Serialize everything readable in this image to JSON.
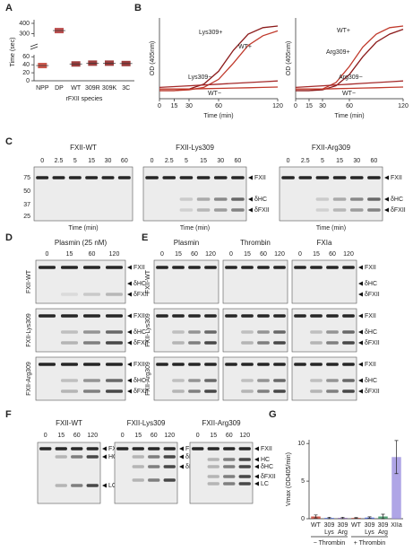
{
  "panel_labels": [
    "A",
    "B",
    "C",
    "D",
    "E",
    "F",
    "G"
  ],
  "chart_data": [
    {
      "type": "scatter",
      "ylabel": "Time (sec)",
      "xlabel": "rFXII species",
      "categories": [
        "NPP",
        "DP",
        "WT",
        "309R",
        "309K",
        "3C"
      ],
      "values": [
        38,
        330,
        42,
        44,
        44,
        43
      ],
      "colors": [
        "#c0392b",
        "#b03030",
        "#8b1a1a",
        "#8b1a1a",
        "#8b1a1a",
        "#8b1a1a"
      ],
      "ylim": [
        0,
        400
      ],
      "axis_break": [
        65,
        270
      ],
      "yticks": [
        0,
        20,
        40,
        60,
        300,
        400
      ]
    },
    {
      "type": "line",
      "ylabel": "OD (405nm)",
      "xlabel": "Time (min)",
      "x": [
        0,
        15,
        30,
        45,
        60,
        75,
        90,
        105,
        120
      ],
      "xlim": [
        0,
        120
      ],
      "xticks": [
        0,
        15,
        30,
        60,
        120
      ],
      "ylim": [
        0,
        0.5
      ],
      "series": [
        {
          "name": "Lys309+",
          "color": "#8b1a1a",
          "values": [
            0.05,
            0.05,
            0.06,
            0.09,
            0.17,
            0.3,
            0.4,
            0.44,
            0.45
          ]
        },
        {
          "name": "WT+",
          "color": "#c0392b",
          "values": [
            0.05,
            0.05,
            0.055,
            0.07,
            0.12,
            0.22,
            0.33,
            0.39,
            0.42
          ]
        },
        {
          "name": "Lys309−",
          "color": "#a52a2a",
          "values": [
            0.07,
            0.075,
            0.08,
            0.085,
            0.09,
            0.095,
            0.1,
            0.105,
            0.11
          ]
        },
        {
          "name": "WT−",
          "color": "#c0392b",
          "values": [
            0.06,
            0.06,
            0.06,
            0.062,
            0.064,
            0.066,
            0.068,
            0.07,
            0.072
          ]
        }
      ]
    },
    {
      "type": "line",
      "xlabel": "Time (min)",
      "ylabel": "OD (405nm)",
      "x": [
        0,
        15,
        30,
        45,
        60,
        75,
        90,
        105,
        120
      ],
      "xlim": [
        0,
        120
      ],
      "xticks": [
        0,
        15,
        30,
        60,
        120
      ],
      "ylim": [
        0,
        0.5
      ],
      "series": [
        {
          "name": "WT+",
          "color": "#c0392b",
          "values": [
            0.05,
            0.05,
            0.06,
            0.1,
            0.2,
            0.32,
            0.4,
            0.44,
            0.45
          ]
        },
        {
          "name": "Arg309+",
          "color": "#8b1a1a",
          "values": [
            0.05,
            0.05,
            0.055,
            0.08,
            0.15,
            0.26,
            0.35,
            0.4,
            0.43
          ]
        },
        {
          "name": "Arg309−",
          "color": "#a52a2a",
          "values": [
            0.07,
            0.075,
            0.08,
            0.085,
            0.09,
            0.095,
            0.1,
            0.105,
            0.11
          ]
        },
        {
          "name": "WT−",
          "color": "#c0392b",
          "values": [
            0.06,
            0.06,
            0.06,
            0.062,
            0.064,
            0.066,
            0.068,
            0.07,
            0.072
          ]
        }
      ]
    },
    {
      "type": "bar",
      "ylabel": "Vmax (OD405/min)",
      "categories": [
        "WT",
        "309",
        "309",
        "WT",
        "309",
        "309",
        "XIIa"
      ],
      "subcategories": [
        null,
        "Lys",
        "Arg",
        null,
        "Lys",
        "Arg",
        null
      ],
      "groups": [
        "− Thrombin",
        "+ Thrombin"
      ],
      "values": [
        0.3,
        0.1,
        0.1,
        0.1,
        0.15,
        0.3,
        8.2
      ],
      "errors": [
        0.2,
        0.1,
        0.1,
        0.05,
        0.1,
        0.3,
        2.2
      ],
      "colors": [
        "#c0392b",
        "#3b5bdb",
        "#7b4fa8",
        "#c0392b",
        "#3b5bdb",
        "#2e8b57",
        "#9b8fe0"
      ],
      "ylim": [
        0,
        10.5
      ],
      "yticks": [
        0,
        5,
        10
      ]
    }
  ],
  "blots": {
    "C": [
      {
        "title": "FXII-WT",
        "lanes": [
          "0",
          "2.5",
          "5",
          "15",
          "30",
          "60"
        ],
        "markers": [
          "75",
          "50",
          "37",
          "25"
        ],
        "xlabel": "Time (min)"
      },
      {
        "title": "FXII-Lys309",
        "lanes": [
          "0",
          "2.5",
          "5",
          "15",
          "30",
          "60"
        ],
        "bands": [
          "FXII",
          "δHC",
          "δFXII"
        ],
        "xlabel": "Time (min)"
      },
      {
        "title": "FXII-Arg309",
        "lanes": [
          "0",
          "2.5",
          "5",
          "15",
          "30",
          "60"
        ],
        "bands": [
          "FXII",
          "δHC",
          "δFXII"
        ],
        "xlabel": "Time (min)"
      }
    ],
    "D": {
      "title": "Plasmin (25 nM)",
      "lanes": [
        "0",
        "15",
        "60",
        "120"
      ],
      "rows": [
        "FXII-WT",
        "FXII-Lys309",
        "FXII-Arg309"
      ],
      "bands": [
        "FXII",
        "δHC",
        "δFXII"
      ]
    },
    "E": {
      "columns": [
        "Plasmin",
        "Thrombin",
        "FXIa"
      ],
      "lanes": [
        "0",
        "15",
        "60",
        "120"
      ],
      "rows": [
        "FXII-WT",
        "FXII-Lys309",
        "FXII-Arg309"
      ],
      "bands": [
        "FXII",
        "δHC",
        "δFXII"
      ]
    },
    "F": [
      {
        "title": "FXII-WT",
        "lanes": [
          "0",
          "15",
          "60",
          "120"
        ],
        "bands": [
          "FXII",
          "HC",
          "LC"
        ]
      },
      {
        "title": "FXII-Lys309",
        "lanes": [
          "0",
          "15",
          "60",
          "120"
        ],
        "bands": [
          "FXII",
          "δHC",
          "δFXII"
        ]
      },
      {
        "title": "FXII-Arg309",
        "lanes": [
          "0",
          "15",
          "60",
          "120"
        ],
        "bands": [
          "FXII",
          "HC",
          "δHC",
          "δFXII",
          "LC"
        ]
      }
    ]
  }
}
